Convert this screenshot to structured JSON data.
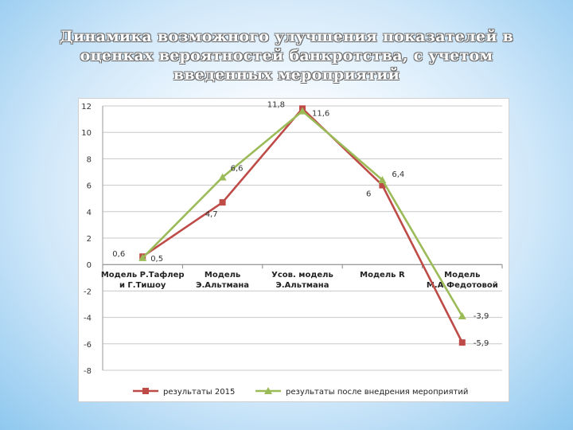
{
  "title_lines": [
    "Динамика возможного улучшения показателей в",
    "оценках вероятностей банкротства, с учетом",
    "введенных мероприятий"
  ],
  "chart_data": {
    "type": "line",
    "categories": [
      [
        "Модель Р.Тафлер",
        "и Г.Тишоу"
      ],
      [
        "Модель",
        "Э.Альтмана"
      ],
      [
        "Усов. модель",
        "Э.Альтмана"
      ],
      [
        "Модель R"
      ],
      [
        "Модель",
        "М.А.Федотовой"
      ]
    ],
    "ylim": [
      -8,
      12
    ],
    "yticks": [
      12,
      10,
      8,
      6,
      4,
      2,
      0,
      -2,
      -4,
      -6,
      -8
    ],
    "grid": true,
    "legend_position": "bottom",
    "series": [
      {
        "name": "результаты 2015",
        "color": "#be4b48",
        "marker": "square",
        "values": [
          0.6,
          4.7,
          11.8,
          6,
          -5.9
        ],
        "labels": [
          "0,6",
          "4,7",
          "11,8",
          "6",
          "-5,9"
        ]
      },
      {
        "name": "результаты после внедрения мероприятий",
        "color": "#9bbb59",
        "marker": "triangle",
        "values": [
          0.5,
          6.6,
          11.6,
          6.4,
          -3.9
        ],
        "labels": [
          "0,5",
          "6,6",
          "11,6",
          "6,4",
          "-3,9"
        ]
      }
    ]
  }
}
